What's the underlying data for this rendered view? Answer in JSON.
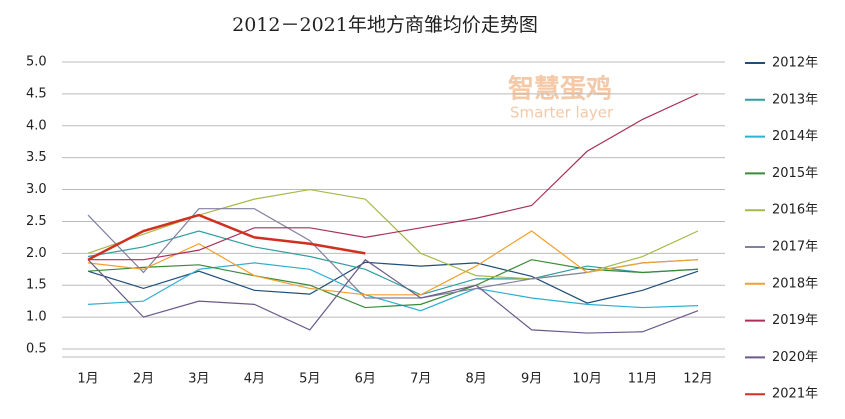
{
  "chart_data": {
    "type": "line",
    "title": "2012－2021年地方商雏均价走势图",
    "watermark": [
      "智慧蛋鸡",
      "Smarter layer"
    ],
    "categories": [
      "1月",
      "2月",
      "3月",
      "4月",
      "5月",
      "6月",
      "7月",
      "8月",
      "9月",
      "10月",
      "11月",
      "12月"
    ],
    "ylim": [
      0.5,
      5.0
    ],
    "yticks": [
      0.5,
      {
        "value": 1,
        "label": "1.0"
      },
      1.5,
      {
        "value": 2,
        "label": "2.0"
      },
      2.5,
      {
        "value": 3,
        "label": "3.0"
      },
      3.5,
      {
        "value": 4,
        "label": "4.0"
      },
      4.5,
      {
        "value": 5,
        "label": "5.0"
      }
    ],
    "grid": true,
    "legend": "right",
    "series": [
      {
        "name": "2012年",
        "color": "#1f4e79",
        "values": [
          1.72,
          1.45,
          1.72,
          1.42,
          1.36,
          1.86,
          1.8,
          1.85,
          1.64,
          1.22,
          1.42,
          1.72
        ]
      },
      {
        "name": "2013年",
        "color": "#2e9e9e",
        "values": [
          1.95,
          2.1,
          2.35,
          2.1,
          1.95,
          1.75,
          1.35,
          1.6,
          1.6,
          1.8,
          1.7,
          1.75
        ]
      },
      {
        "name": "2014年",
        "color": "#30b0d0",
        "values": [
          1.2,
          1.25,
          1.75,
          1.85,
          1.75,
          1.35,
          1.1,
          1.45,
          1.3,
          1.2,
          1.15,
          1.18
        ]
      },
      {
        "name": "2015年",
        "color": "#3a8a3a",
        "values": [
          1.72,
          1.78,
          1.82,
          1.65,
          1.5,
          1.15,
          1.2,
          1.5,
          1.9,
          1.75,
          1.7,
          1.75
        ]
      },
      {
        "name": "2016年",
        "color": "#a8b848",
        "values": [
          2.0,
          2.3,
          2.6,
          2.85,
          3.0,
          2.85,
          2.0,
          1.65,
          1.6,
          1.7,
          1.95,
          2.35
        ]
      },
      {
        "name": "2017年",
        "color": "#8080a0",
        "values": [
          2.6,
          1.7,
          2.7,
          2.7,
          2.2,
          1.3,
          1.3,
          1.45,
          1.6,
          1.7,
          1.85,
          1.9
        ]
      },
      {
        "name": "2018年",
        "color": "#f0a030",
        "values": [
          1.85,
          1.75,
          2.15,
          1.65,
          1.45,
          1.35,
          1.35,
          1.8,
          2.35,
          1.7,
          1.85,
          1.9
        ]
      },
      {
        "name": "2019年",
        "color": "#a8305a",
        "values": [
          1.9,
          1.9,
          2.05,
          2.4,
          2.4,
          2.25,
          2.4,
          2.55,
          2.75,
          3.6,
          4.1,
          4.5
        ]
      },
      {
        "name": "2020年",
        "color": "#6a5a8a",
        "values": [
          1.9,
          1.0,
          1.25,
          1.2,
          0.8,
          1.9,
          1.3,
          1.5,
          0.8,
          0.75,
          0.77,
          1.1
        ]
      },
      {
        "name": "2021年",
        "color": "#d03020",
        "width": 2.5,
        "values": [
          1.9,
          2.35,
          2.6,
          2.25,
          2.15,
          2.0,
          null,
          null,
          null,
          null,
          null,
          null
        ]
      }
    ]
  }
}
